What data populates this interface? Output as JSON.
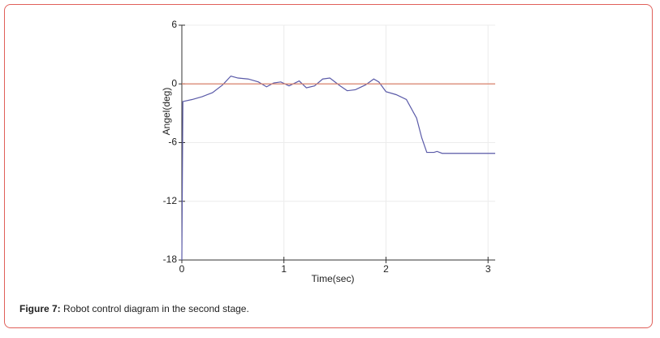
{
  "chart_data": {
    "type": "line",
    "x_label": "Time(sec)",
    "y_label": "Angel(deg)",
    "xlim": [
      0,
      3.07
    ],
    "ylim": [
      -18,
      6
    ],
    "xticks": [
      0,
      1,
      2,
      3
    ],
    "yticks": [
      6,
      0,
      -6,
      -12,
      -18
    ],
    "grid": true,
    "series": [
      {
        "color": "#5a5aa8",
        "x": [
          0,
          0.01,
          0.1,
          0.2,
          0.3,
          0.4,
          0.48,
          0.55,
          0.65,
          0.75,
          0.83,
          0.9,
          0.97,
          1.05,
          1.15,
          1.22,
          1.3,
          1.38,
          1.45,
          1.55,
          1.62,
          1.7,
          1.8,
          1.88,
          1.93,
          2.0,
          2.1,
          2.2,
          2.3,
          2.35,
          2.4,
          2.47,
          2.5,
          2.55,
          2.7,
          3.07
        ],
        "values": [
          -18,
          -1.8,
          -1.6,
          -1.3,
          -0.9,
          -0.1,
          0.8,
          0.6,
          0.5,
          0.2,
          -0.3,
          0.1,
          0.2,
          -0.2,
          0.3,
          -0.4,
          -0.2,
          0.5,
          0.6,
          -0.2,
          -0.7,
          -0.6,
          -0.1,
          0.5,
          0.2,
          -0.8,
          -1.1,
          -1.6,
          -3.5,
          -5.5,
          -7.0,
          -7.0,
          -6.9,
          -7.1,
          -7.1,
          -7.1
        ]
      },
      {
        "color": "#d9826a",
        "x": [
          0,
          3.07
        ],
        "values": [
          0,
          0
        ]
      }
    ]
  },
  "caption": {
    "label": "Figure 7:",
    "text": "Robot control diagram in the second stage."
  }
}
